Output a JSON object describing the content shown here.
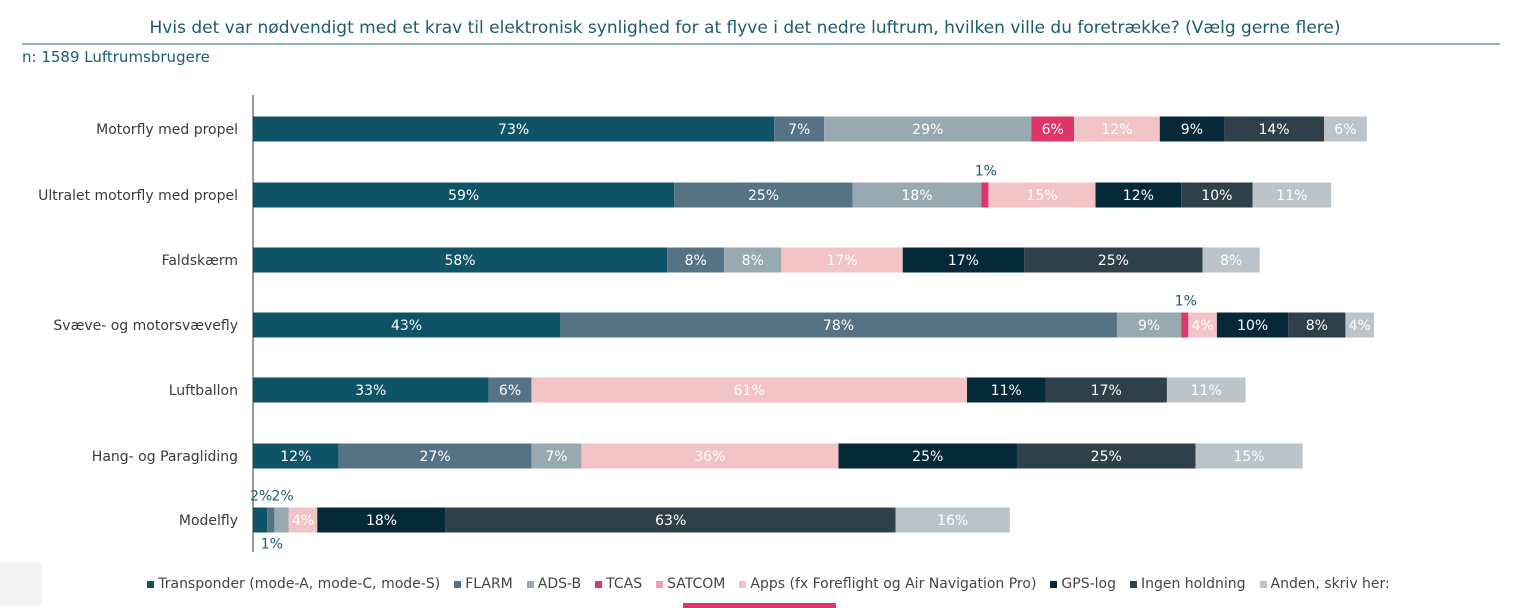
{
  "title": "Hvis det var nødvendigt med et krav til elektronisk synlighed for at flyve i det nedre luftrum, hvilken ville du foretrække? (Vælg gerne flere)",
  "subtitle": "n: 1589 Luftrumsbrugere",
  "chart_data": {
    "type": "bar",
    "orientation": "horizontal",
    "stacked": true,
    "title": "Hvis det var nødvendigt med et krav til elektronisk synlighed for at flyve i det nedre luftrum, hvilken ville du foretrække? (Vælg gerne flere)",
    "categories": [
      "Motorfly med propel",
      "Ultralet motorfly med propel",
      "Faldskærm",
      "Svæve- og motorsvævefly",
      "Luftballon",
      "Hang- og Paragliding",
      "Modelfly"
    ],
    "series": [
      {
        "name": "Transponder (mode-A, mode-C, mode-S)",
        "color": "#0f5366",
        "text_color": "#ffffff",
        "values": [
          73,
          59,
          58,
          43,
          33,
          12,
          2
        ]
      },
      {
        "name": "FLARM",
        "color": "#557385",
        "text_color": "#ffffff",
        "values": [
          7,
          25,
          8,
          78,
          6,
          27,
          1
        ]
      },
      {
        "name": "ADS-B",
        "color": "#98a9b2",
        "text_color": "#ffffff",
        "values": [
          29,
          18,
          8,
          9,
          0,
          7,
          2
        ]
      },
      {
        "name": "TCAS",
        "color": "#e0356b",
        "text_color": "#ffffff",
        "values": [
          6,
          1,
          0,
          1,
          0,
          0,
          0
        ]
      },
      {
        "name": "SATCOM",
        "color": "#efa0ae",
        "text_color": "#ffffff",
        "values": [
          0,
          0,
          0,
          0,
          0,
          0,
          0
        ]
      },
      {
        "name": "Apps (fx Foreflight og Air Navigation Pro)",
        "color": "#f2c4c6",
        "text_color": "#ffffff",
        "values": [
          12,
          15,
          17,
          4,
          61,
          36,
          4
        ]
      },
      {
        "name": "GPS-log",
        "color": "#06293a",
        "text_color": "#ffffff",
        "values": [
          9,
          12,
          17,
          10,
          11,
          25,
          18
        ]
      },
      {
        "name": "Ingen holdning",
        "color": "#2f404b",
        "text_color": "#ffffff",
        "values": [
          14,
          10,
          25,
          8,
          17,
          25,
          63
        ]
      },
      {
        "name": "Anden, skriv her:",
        "color": "#bcc3c9",
        "text_color": "#ffffff",
        "values": [
          6,
          11,
          8,
          4,
          11,
          15,
          16
        ]
      }
    ],
    "legend_position": "bottom",
    "grid": false
  },
  "legend_items": [
    {
      "label": "Transponder (mode-A, mode-C, mode-S)",
      "color": "#0f5366"
    },
    {
      "label": "FLARM",
      "color": "#557385"
    },
    {
      "label": "ADS-B",
      "color": "#98a9b2"
    },
    {
      "label": "TCAS",
      "color": "#e0356b"
    },
    {
      "label": "SATCOM",
      "color": "#efa0ae"
    },
    {
      "label": "Apps (fx Foreflight og Air Navigation Pro)",
      "color": "#f2c4c6"
    },
    {
      "label": "GPS-log",
      "color": "#06293a"
    },
    {
      "label": "Ingen holdning",
      "color": "#2f404b"
    },
    {
      "label": "Anden, skriv her:",
      "color": "#bcc3c9"
    }
  ]
}
